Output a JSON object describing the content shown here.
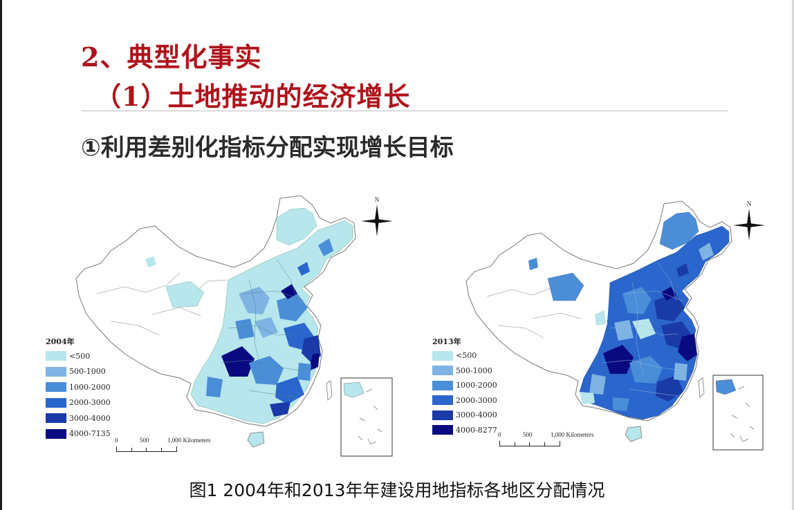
{
  "slide": {
    "heading_1": "2、典型化事实",
    "heading_2": "（1）土地推动的经济增长",
    "subheading": "①利用差别化指标分配实现增长目标",
    "caption": "图1 2004年和2013年年建设用地指标各地区分配情况"
  },
  "maps": [
    {
      "year_label": "2004年",
      "legend": [
        "<500",
        "500-1000",
        "1000-2000",
        "2000-3000",
        "3000-4000",
        "4000-7135"
      ],
      "legend_colors": [
        "#b7e6ec",
        "#7eb3e3",
        "#4a8ed8",
        "#2a66cc",
        "#1a3aa8",
        "#0a0a80"
      ],
      "scale_labels": [
        "0",
        "500",
        "1,000 Kilometers"
      ],
      "north_label": "N"
    },
    {
      "year_label": "2013年",
      "legend": [
        "<500",
        "500-1000",
        "1000-2000",
        "2000-3000",
        "3000-4000",
        "4000-8277"
      ],
      "legend_colors": [
        "#b7e6ec",
        "#7eb3e3",
        "#4a8ed8",
        "#2a66cc",
        "#1a3aa8",
        "#0a0a80"
      ],
      "scale_labels": [
        "0",
        "500",
        "1,000 Kilometers"
      ],
      "north_label": "N"
    }
  ]
}
